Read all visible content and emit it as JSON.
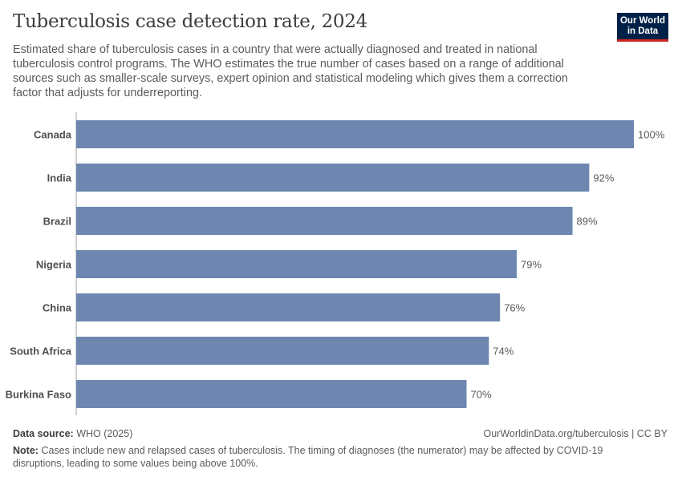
{
  "header": {
    "title": "Tuberculosis case detection rate, 2024",
    "subtitle": "Estimated share of tuberculosis cases in a country that were actually diagnosed and treated in national tuberculosis control programs. The WHO estimates the true number of cases based on a range of additional sources such as smaller-scale surveys, expert opinion and statistical modeling which gives them a correction factor that adjusts for underreporting."
  },
  "logo": {
    "line1": "Our World",
    "line2": "in Data"
  },
  "colors": {
    "bar": "#6d87b0",
    "logo_bg": "#002147",
    "logo_accent": "#ce261e"
  },
  "chart_data": {
    "type": "bar",
    "orientation": "horizontal",
    "title": "Tuberculosis case detection rate, 2024",
    "categories": [
      "Canada",
      "India",
      "Brazil",
      "Nigeria",
      "China",
      "South Africa",
      "Burkina Faso"
    ],
    "values": [
      100,
      92,
      89,
      79,
      76,
      74,
      70
    ],
    "labels": [
      "100%",
      "92%",
      "89%",
      "79%",
      "76%",
      "74%",
      "70%"
    ],
    "unit": "%",
    "xlim": [
      0,
      100
    ]
  },
  "footer": {
    "source_label": "Data source:",
    "source_value": "WHO (2025)",
    "credit": "OurWorldinData.org/tuberculosis | CC BY",
    "note_label": "Note:",
    "note_text": "Cases include new and relapsed cases of tuberculosis. The timing of diagnoses (the numerator) may be affected by COVID-19 disruptions, leading to some values being above 100%."
  }
}
